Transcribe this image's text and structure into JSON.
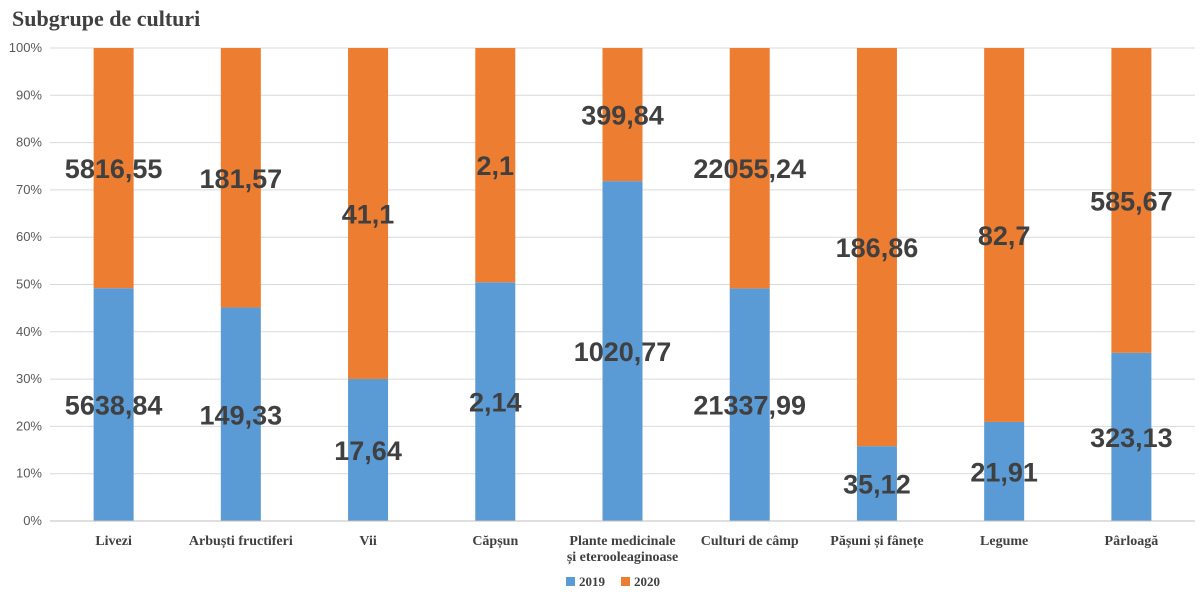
{
  "chart_data": {
    "type": "bar",
    "stacked": "percent",
    "title": "Subgrupe de culturi",
    "categories": [
      "Livezi",
      "Arbuști fructiferi",
      "Vii",
      "Căpșun",
      "Plante medicinale\nși eterooleaginoase",
      "Culturi de câmp",
      "Pășuni și fânețe",
      "Legume",
      "Pârloagă"
    ],
    "series": [
      {
        "name": "2019",
        "color": "#5b9bd5",
        "values": [
          5638.84,
          149.33,
          17.64,
          2.14,
          1020.77,
          21337.99,
          35.12,
          21.91,
          323.13
        ],
        "labels": [
          "5638,84",
          "149,33",
          "17,64",
          "2,14",
          "1020,77",
          "21337,99",
          "35,12",
          "21,91",
          "323,13"
        ]
      },
      {
        "name": "2020",
        "color": "#ed7d31",
        "values": [
          5816.55,
          181.57,
          41.1,
          2.1,
          399.84,
          22055.24,
          186.86,
          82.7,
          585.67
        ],
        "labels": [
          "5816,55",
          "181,57",
          "41,1",
          "2,1",
          "399,84",
          "22055,24",
          "186,86",
          "82,7",
          "585,67"
        ]
      }
    ],
    "y_ticks": [
      "0%",
      "10%",
      "20%",
      "30%",
      "40%",
      "50%",
      "60%",
      "70%",
      "80%",
      "90%",
      "100%"
    ],
    "ylim": [
      0,
      100
    ],
    "grid": true,
    "legend": "bottom"
  }
}
